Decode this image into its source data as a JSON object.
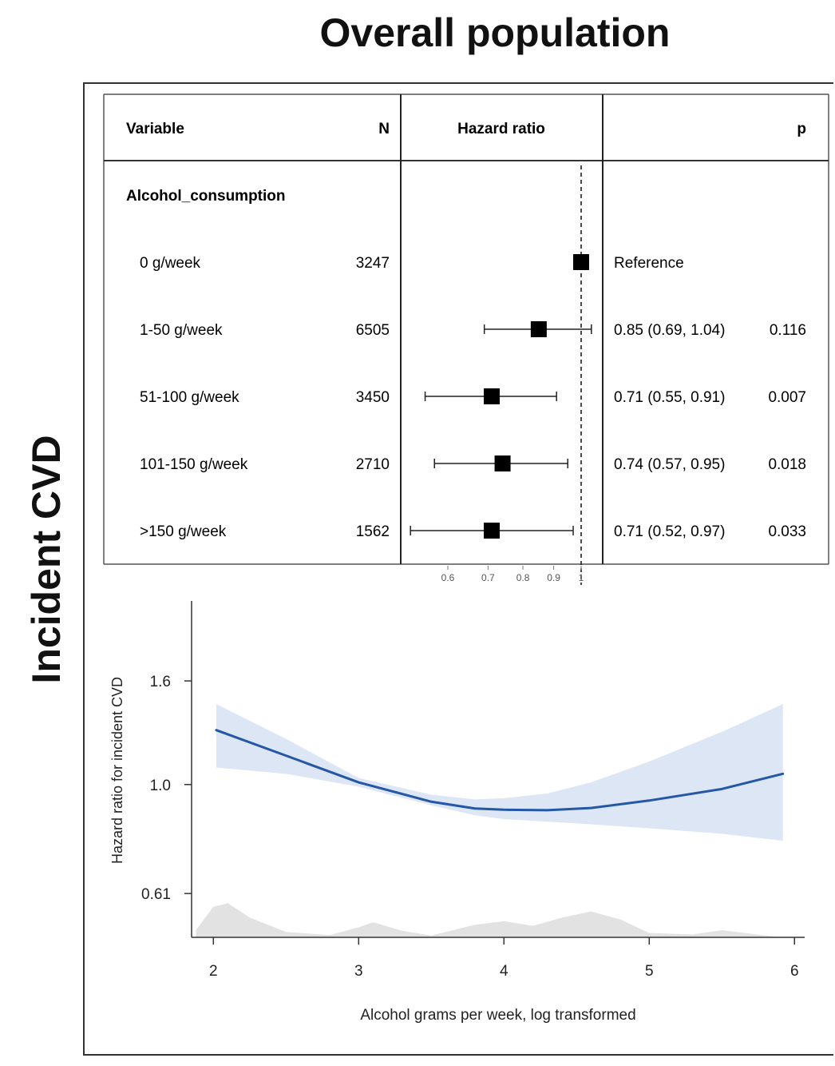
{
  "page": {
    "title": "Overall population",
    "side_title": "Incident CVD"
  },
  "chart_data": [
    {
      "type": "table",
      "subtype": "forest",
      "columns": {
        "variable": "Variable",
        "n": "N",
        "hazard_ratio": "Hazard ratio",
        "p": "p"
      },
      "group": "Alcohol_consumption",
      "rows": [
        {
          "label": "0 g/week",
          "n": "3247",
          "hr": 1.0,
          "lo": null,
          "hi": null,
          "ci_text": "Reference",
          "p": ""
        },
        {
          "label": "1-50 g/week",
          "n": "6505",
          "hr": 0.85,
          "lo": 0.69,
          "hi": 1.04,
          "ci_text": "0.85 (0.69, 1.04)",
          "p": "0.116"
        },
        {
          "label": "51-100 g/week",
          "n": "3450",
          "hr": 0.71,
          "lo": 0.55,
          "hi": 0.91,
          "ci_text": "0.71 (0.55, 0.91)",
          "p": "0.007"
        },
        {
          "label": "101-150 g/week",
          "n": "2710",
          "hr": 0.74,
          "lo": 0.57,
          "hi": 0.95,
          "ci_text": "0.74 (0.57, 0.95)",
          "p": "0.018"
        },
        {
          "label": ">150 g/week",
          "n": "1562",
          "hr": 0.71,
          "lo": 0.52,
          "hi": 0.97,
          "ci_text": "0.71 (0.52, 0.97)",
          "p": "0.033"
        }
      ],
      "x_scale": "log",
      "reference_line": 1,
      "x_ticks": [
        {
          "value": 0.6,
          "label": "0.6"
        },
        {
          "value": 0.7,
          "label": "0.7"
        },
        {
          "value": 0.8,
          "label": "0.8"
        },
        {
          "value": 0.9,
          "label": "0.9"
        },
        {
          "value": 1.0,
          "label": "1"
        }
      ],
      "colors": {
        "marker": "#000000",
        "ci": "#222222",
        "ref_line": "#111111"
      }
    },
    {
      "type": "line",
      "xlabel": "Alcohol grams per week, log transformed",
      "ylabel": "Hazard ratio for incident CVD",
      "y_scale": "log",
      "xlim": [
        1.85,
        6.07
      ],
      "ylim": [
        0.5,
        2.3
      ],
      "x_ticks": [
        {
          "value": 2,
          "label": "2"
        },
        {
          "value": 3,
          "label": "3"
        },
        {
          "value": 4,
          "label": "4"
        },
        {
          "value": 5,
          "label": "5"
        },
        {
          "value": 6,
          "label": "6"
        }
      ],
      "y_ticks": [
        {
          "value": 0.61,
          "label": "0.61"
        },
        {
          "value": 1.0,
          "label": "1.0"
        },
        {
          "value": 1.6,
          "label": "1.6"
        }
      ],
      "series": [
        {
          "x": [
            2.02,
            2.5,
            3.0,
            3.5,
            3.8,
            4.0,
            4.3,
            4.6,
            5.0,
            5.5,
            5.92
          ],
          "y": [
            1.28,
            1.14,
            1.01,
            0.925,
            0.897,
            0.892,
            0.89,
            0.899,
            0.93,
            0.98,
            1.05
          ],
          "lo": [
            1.08,
            1.05,
            0.99,
            0.91,
            0.87,
            0.855,
            0.845,
            0.835,
            0.82,
            0.8,
            0.775
          ],
          "hi": [
            1.44,
            1.23,
            1.03,
            0.955,
            0.935,
            0.94,
            0.96,
            1.01,
            1.11,
            1.27,
            1.44
          ]
        }
      ],
      "density": {
        "x": [
          1.88,
          2.0,
          2.1,
          2.25,
          2.5,
          2.8,
          3.0,
          3.1,
          3.3,
          3.5,
          3.8,
          4.0,
          4.2,
          4.4,
          4.6,
          4.8,
          5.0,
          5.3,
          5.5,
          5.7,
          5.9
        ],
        "h": [
          0.2,
          0.85,
          0.95,
          0.55,
          0.15,
          0.06,
          0.28,
          0.42,
          0.18,
          0.05,
          0.35,
          0.45,
          0.32,
          0.55,
          0.72,
          0.5,
          0.12,
          0.08,
          0.2,
          0.1,
          0.0
        ]
      },
      "colors": {
        "line": "#2457A6",
        "band": "#DCE6F4",
        "density": "#E2E2E2",
        "axis": "#333333"
      }
    }
  ]
}
